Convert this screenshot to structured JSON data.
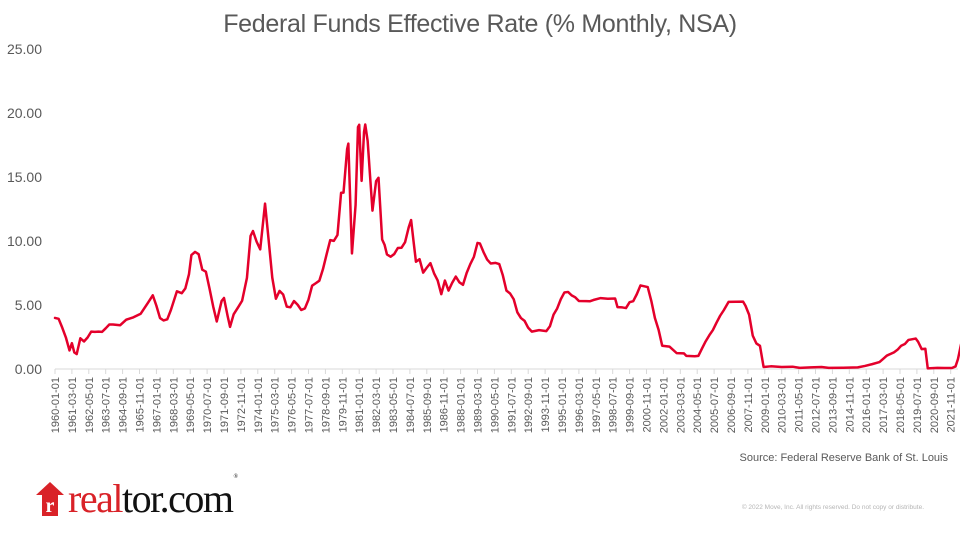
{
  "chart_data": {
    "type": "line",
    "title": "Federal Funds Effective Rate (% Monthly, NSA)",
    "xlabel": "",
    "ylabel": "",
    "ylim": [
      0,
      25
    ],
    "yticks": [
      "0.00",
      "5.00",
      "10.00",
      "15.00",
      "20.00",
      "25.00"
    ],
    "grid": false,
    "legend": "none",
    "line_color": "#e4002b",
    "xticks": [
      "1960-01-01",
      "1961-03-01",
      "1962-05-01",
      "1963-07-01",
      "1964-09-01",
      "1965-11-01",
      "1967-01-01",
      "1968-03-01",
      "1969-05-01",
      "1970-07-01",
      "1971-09-01",
      "1972-11-01",
      "1974-01-01",
      "1975-03-01",
      "1976-05-01",
      "1977-07-01",
      "1978-09-01",
      "1979-11-01",
      "1981-01-01",
      "1982-03-01",
      "1983-05-01",
      "1984-07-01",
      "1985-09-01",
      "1986-11-01",
      "1988-01-01",
      "1989-03-01",
      "1990-05-01",
      "1991-07-01",
      "1992-09-01",
      "1993-11-01",
      "1995-01-01",
      "1996-03-01",
      "1997-05-01",
      "1998-07-01",
      "1999-09-01",
      "2000-11-01",
      "2002-01-01",
      "2003-03-01",
      "2004-05-01",
      "2005-07-01",
      "2006-09-01",
      "2007-11-01",
      "2009-01-01",
      "2010-03-01",
      "2011-05-01",
      "2012-07-01",
      "2013-09-01",
      "2014-11-01",
      "2016-01-01",
      "2017-03-01",
      "2018-05-01",
      "2019-07-01",
      "2020-09-01",
      "2021-11-01"
    ],
    "series": [
      {
        "name": "Federal Funds Effective Rate",
        "points": [
          [
            "1960-01",
            3.99
          ],
          [
            "1960-04",
            3.92
          ],
          [
            "1960-07",
            3.23
          ],
          [
            "1960-10",
            2.47
          ],
          [
            "1961-01",
            1.45
          ],
          [
            "1961-03",
            2.02
          ],
          [
            "1961-05",
            1.29
          ],
          [
            "1961-07",
            1.17
          ],
          [
            "1961-10",
            2.4
          ],
          [
            "1962-01",
            2.15
          ],
          [
            "1962-04",
            2.46
          ],
          [
            "1962-07",
            2.92
          ],
          [
            "1962-10",
            2.9
          ],
          [
            "1963-01",
            2.92
          ],
          [
            "1963-04",
            2.9
          ],
          [
            "1963-07",
            3.18
          ],
          [
            "1963-10",
            3.48
          ],
          [
            "1964-01",
            3.48
          ],
          [
            "1964-07",
            3.42
          ],
          [
            "1964-12",
            3.85
          ],
          [
            "1965-06",
            4.04
          ],
          [
            "1965-12",
            4.32
          ],
          [
            "1966-06",
            5.17
          ],
          [
            "1966-10",
            5.76
          ],
          [
            "1967-01",
            4.94
          ],
          [
            "1967-04",
            3.98
          ],
          [
            "1967-07",
            3.79
          ],
          [
            "1967-10",
            3.88
          ],
          [
            "1968-01",
            4.61
          ],
          [
            "1968-06",
            6.07
          ],
          [
            "1968-10",
            5.92
          ],
          [
            "1969-01",
            6.3
          ],
          [
            "1969-04",
            7.41
          ],
          [
            "1969-06",
            8.9
          ],
          [
            "1969-09",
            9.15
          ],
          [
            "1969-12",
            8.97
          ],
          [
            "1970-03",
            7.76
          ],
          [
            "1970-06",
            7.6
          ],
          [
            "1970-09",
            6.29
          ],
          [
            "1970-12",
            4.9
          ],
          [
            "1971-03",
            3.71
          ],
          [
            "1971-07",
            5.31
          ],
          [
            "1971-09",
            5.55
          ],
          [
            "1971-12",
            4.14
          ],
          [
            "1972-02",
            3.29
          ],
          [
            "1972-05",
            4.27
          ],
          [
            "1972-09",
            4.87
          ],
          [
            "1972-12",
            5.33
          ],
          [
            "1973-04",
            7.12
          ],
          [
            "1973-07",
            10.4
          ],
          [
            "1973-09",
            10.78
          ],
          [
            "1973-12",
            9.95
          ],
          [
            "1974-03",
            9.35
          ],
          [
            "1974-07",
            12.92
          ],
          [
            "1974-10",
            10.06
          ],
          [
            "1975-01",
            7.13
          ],
          [
            "1975-04",
            5.49
          ],
          [
            "1975-07",
            6.1
          ],
          [
            "1975-10",
            5.82
          ],
          [
            "1976-01",
            4.87
          ],
          [
            "1976-04",
            4.82
          ],
          [
            "1976-07",
            5.31
          ],
          [
            "1976-10",
            5.02
          ],
          [
            "1977-01",
            4.61
          ],
          [
            "1977-04",
            4.73
          ],
          [
            "1977-07",
            5.42
          ],
          [
            "1977-10",
            6.51
          ],
          [
            "1978-01",
            6.7
          ],
          [
            "1978-04",
            6.9
          ],
          [
            "1978-07",
            7.81
          ],
          [
            "1978-10",
            8.96
          ],
          [
            "1979-01",
            10.07
          ],
          [
            "1979-04",
            10.01
          ],
          [
            "1979-07",
            10.47
          ],
          [
            "1979-10",
            13.77
          ],
          [
            "1979-12",
            13.78
          ],
          [
            "1980-03",
            17.19
          ],
          [
            "1980-04",
            17.61
          ],
          [
            "1980-07",
            9.03
          ],
          [
            "1980-10",
            12.81
          ],
          [
            "1980-12",
            18.9
          ],
          [
            "1981-01",
            19.08
          ],
          [
            "1981-03",
            14.7
          ],
          [
            "1981-05",
            18.52
          ],
          [
            "1981-06",
            19.1
          ],
          [
            "1981-08",
            17.82
          ],
          [
            "1981-10",
            15.08
          ],
          [
            "1981-12",
            12.37
          ],
          [
            "1982-03",
            14.68
          ],
          [
            "1982-05",
            14.94
          ],
          [
            "1982-08",
            10.12
          ],
          [
            "1982-10",
            9.71
          ],
          [
            "1982-12",
            8.95
          ],
          [
            "1983-03",
            8.77
          ],
          [
            "1983-06",
            8.98
          ],
          [
            "1983-09",
            9.45
          ],
          [
            "1983-12",
            9.47
          ],
          [
            "1984-03",
            9.91
          ],
          [
            "1984-06",
            11.06
          ],
          [
            "1984-08",
            11.64
          ],
          [
            "1984-10",
            9.99
          ],
          [
            "1984-12",
            8.38
          ],
          [
            "1985-03",
            8.58
          ],
          [
            "1985-06",
            7.53
          ],
          [
            "1985-09",
            7.92
          ],
          [
            "1985-12",
            8.27
          ],
          [
            "1986-03",
            7.48
          ],
          [
            "1986-06",
            6.92
          ],
          [
            "1986-09",
            5.85
          ],
          [
            "1986-12",
            6.91
          ],
          [
            "1987-03",
            6.13
          ],
          [
            "1987-06",
            6.73
          ],
          [
            "1987-09",
            7.22
          ],
          [
            "1987-12",
            6.77
          ],
          [
            "1988-03",
            6.58
          ],
          [
            "1988-06",
            7.5
          ],
          [
            "1988-09",
            8.19
          ],
          [
            "1988-12",
            8.76
          ],
          [
            "1989-03",
            9.85
          ],
          [
            "1989-05",
            9.81
          ],
          [
            "1989-08",
            9.13
          ],
          [
            "1989-11",
            8.55
          ],
          [
            "1990-02",
            8.24
          ],
          [
            "1990-06",
            8.29
          ],
          [
            "1990-09",
            8.2
          ],
          [
            "1990-12",
            7.31
          ],
          [
            "1991-03",
            6.12
          ],
          [
            "1991-06",
            5.9
          ],
          [
            "1991-09",
            5.45
          ],
          [
            "1991-12",
            4.43
          ],
          [
            "1992-03",
            3.98
          ],
          [
            "1992-06",
            3.76
          ],
          [
            "1992-09",
            3.22
          ],
          [
            "1992-12",
            2.92
          ],
          [
            "1993-06",
            3.04
          ],
          [
            "1993-12",
            2.96
          ],
          [
            "1994-03",
            3.34
          ],
          [
            "1994-06",
            4.25
          ],
          [
            "1994-09",
            4.73
          ],
          [
            "1994-12",
            5.45
          ],
          [
            "1995-03",
            5.98
          ],
          [
            "1995-06",
            6.02
          ],
          [
            "1995-09",
            5.75
          ],
          [
            "1995-12",
            5.6
          ],
          [
            "1996-03",
            5.31
          ],
          [
            "1996-09",
            5.3
          ],
          [
            "1996-12",
            5.29
          ],
          [
            "1997-03",
            5.39
          ],
          [
            "1997-09",
            5.54
          ],
          [
            "1998-03",
            5.49
          ],
          [
            "1998-09",
            5.51
          ],
          [
            "1998-11",
            4.83
          ],
          [
            "1999-03",
            4.81
          ],
          [
            "1999-06",
            4.76
          ],
          [
            "1999-09",
            5.22
          ],
          [
            "1999-12",
            5.3
          ],
          [
            "2000-03",
            5.85
          ],
          [
            "2000-06",
            6.53
          ],
          [
            "2000-12",
            6.4
          ],
          [
            "2001-03",
            5.31
          ],
          [
            "2001-06",
            3.97
          ],
          [
            "2001-09",
            3.07
          ],
          [
            "2001-12",
            1.82
          ],
          [
            "2002-06",
            1.75
          ],
          [
            "2002-12",
            1.24
          ],
          [
            "2003-06",
            1.22
          ],
          [
            "2003-08",
            1.03
          ],
          [
            "2004-03",
            1.0
          ],
          [
            "2004-06",
            1.03
          ],
          [
            "2004-09",
            1.61
          ],
          [
            "2004-12",
            2.16
          ],
          [
            "2005-03",
            2.63
          ],
          [
            "2005-06",
            3.04
          ],
          [
            "2005-09",
            3.62
          ],
          [
            "2005-12",
            4.16
          ],
          [
            "2006-03",
            4.59
          ],
          [
            "2006-07",
            5.24
          ],
          [
            "2007-07",
            5.26
          ],
          [
            "2007-09",
            4.94
          ],
          [
            "2007-12",
            4.24
          ],
          [
            "2008-03",
            2.61
          ],
          [
            "2008-06",
            2.0
          ],
          [
            "2008-09",
            1.81
          ],
          [
            "2008-12",
            0.16
          ],
          [
            "2009-06",
            0.21
          ],
          [
            "2010-03",
            0.16
          ],
          [
            "2010-12",
            0.18
          ],
          [
            "2011-06",
            0.09
          ],
          [
            "2012-03",
            0.13
          ],
          [
            "2012-12",
            0.16
          ],
          [
            "2013-06",
            0.09
          ],
          [
            "2014-06",
            0.1
          ],
          [
            "2015-06",
            0.13
          ],
          [
            "2015-12",
            0.24
          ],
          [
            "2016-06",
            0.38
          ],
          [
            "2016-12",
            0.54
          ],
          [
            "2017-03",
            0.79
          ],
          [
            "2017-06",
            1.04
          ],
          [
            "2017-12",
            1.3
          ],
          [
            "2018-03",
            1.51
          ],
          [
            "2018-06",
            1.82
          ],
          [
            "2018-09",
            1.95
          ],
          [
            "2018-12",
            2.27
          ],
          [
            "2019-06",
            2.38
          ],
          [
            "2019-08",
            2.13
          ],
          [
            "2019-11",
            1.55
          ],
          [
            "2020-02",
            1.58
          ],
          [
            "2020-04",
            0.05
          ],
          [
            "2020-12",
            0.09
          ],
          [
            "2021-06",
            0.08
          ],
          [
            "2021-12",
            0.08
          ],
          [
            "2022-03",
            0.2
          ],
          [
            "2022-05",
            0.77
          ],
          [
            "2022-06",
            1.21
          ],
          [
            "2022-07",
            1.68
          ],
          [
            "2022-09",
            2.56
          ],
          [
            "2022-10",
            3.08
          ]
        ]
      }
    ]
  },
  "footer": {
    "source": "Source: Federal Reserve Bank of St. Louis",
    "copyright": "© 2022 Move, Inc. All rights reserved. Do not copy or distribute."
  },
  "logo": {
    "house_letter": "r",
    "text_red": "real",
    "text_black": "tor.com",
    "registered": "®",
    "brand_color": "#d92228"
  }
}
